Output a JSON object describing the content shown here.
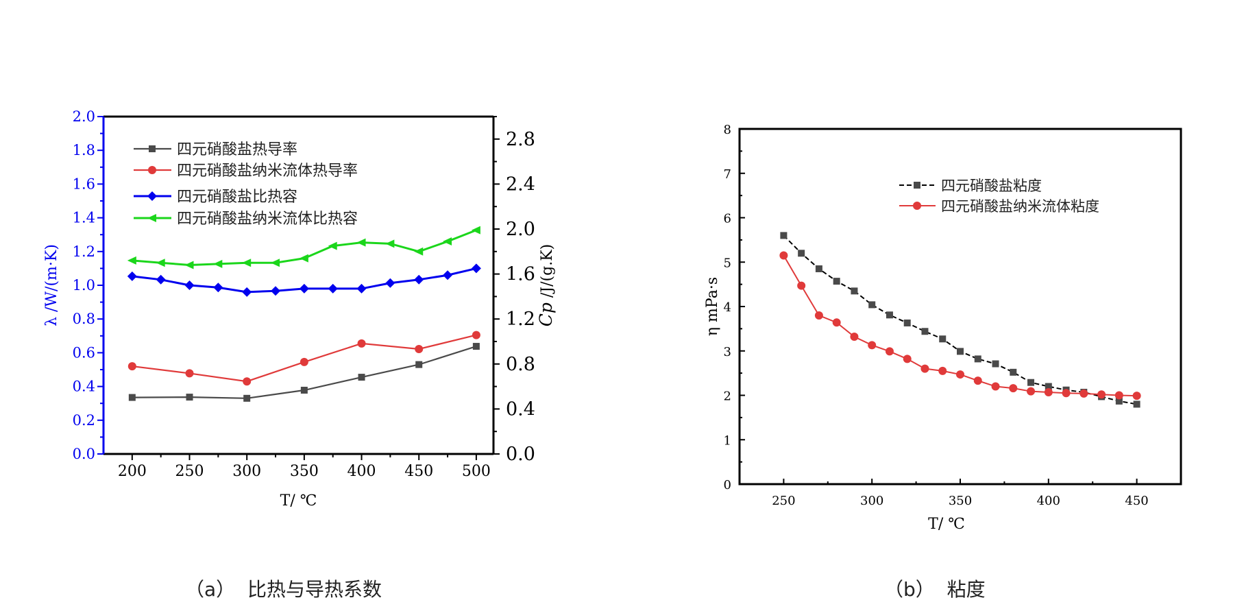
{
  "chart_data": [
    {
      "id": "a",
      "type": "line",
      "caption": "（a）  比热与导热系数",
      "xlabel": "T/ ℃",
      "ylabel_left": "λ /W/(m·K)",
      "ylabel_right_italic": "Cp",
      "ylabel_right_rest": " /J/(g.K)",
      "xlim": [
        175,
        515
      ],
      "ylim_left": [
        0,
        2.0
      ],
      "ylim_right": [
        0,
        3.0
      ],
      "x_ticks": [
        200,
        250,
        300,
        350,
        400,
        450,
        500
      ],
      "y_left_ticks": [
        "0.0",
        "0.2",
        "0.4",
        "0.6",
        "0.8",
        "1.0",
        "1.2",
        "1.4",
        "1.6",
        "1.8",
        "2.0"
      ],
      "y_right_ticks": [
        "0.0",
        "0.4",
        "0.8",
        "1.2",
        "1.6",
        "2.0",
        "2.4",
        "2.8"
      ],
      "legend_position": "top-left",
      "left_axis_color": "#0000ee",
      "series": [
        {
          "name": "四元硝酸盐热导率",
          "axis": "left",
          "color": "#4a4a4a",
          "marker": "square",
          "x": [
            200,
            250,
            300,
            350,
            400,
            450,
            500
          ],
          "values": [
            0.335,
            0.337,
            0.33,
            0.378,
            0.455,
            0.53,
            0.638
          ]
        },
        {
          "name": "四元硝酸盐纳米流体热导率",
          "axis": "left",
          "color": "#e03a3a",
          "marker": "circle",
          "x": [
            200,
            250,
            300,
            350,
            400,
            450,
            500
          ],
          "values": [
            0.52,
            0.478,
            0.43,
            0.545,
            0.655,
            0.622,
            0.705
          ]
        },
        {
          "name": "四元硝酸盐比热容",
          "axis": "right",
          "color": "#0000ee",
          "marker": "diamond",
          "x": [
            200,
            225,
            250,
            275,
            300,
            325,
            350,
            375,
            400,
            425,
            450,
            475,
            500
          ],
          "values": [
            1.58,
            1.55,
            1.5,
            1.48,
            1.44,
            1.45,
            1.47,
            1.47,
            1.47,
            1.52,
            1.55,
            1.59,
            1.65
          ]
        },
        {
          "name": "四元硝酸盐纳米流体比热容",
          "axis": "right",
          "color": "#1bd61b",
          "marker": "triangle-left",
          "x": [
            200,
            225,
            250,
            275,
            300,
            325,
            350,
            375,
            400,
            425,
            450,
            475,
            500
          ],
          "values": [
            1.72,
            1.7,
            1.68,
            1.69,
            1.7,
            1.7,
            1.74,
            1.85,
            1.88,
            1.87,
            1.8,
            1.89,
            1.99
          ]
        }
      ]
    },
    {
      "id": "b",
      "type": "line",
      "caption": "（b）  粘度",
      "xlabel": "T/ ℃",
      "ylabel": "η mPa·s",
      "xlim": [
        225,
        475
      ],
      "ylim": [
        0,
        8
      ],
      "x_ticks": [
        250,
        300,
        350,
        400,
        450
      ],
      "y_ticks": [
        0,
        1,
        2,
        3,
        4,
        5,
        6,
        7,
        8
      ],
      "legend_position": "top-center",
      "series": [
        {
          "name": "四元硝酸盐粘度",
          "color": "#4a4a4a",
          "marker": "square",
          "dashed": true,
          "x": [
            250,
            260,
            270,
            280,
            290,
            300,
            310,
            320,
            330,
            340,
            350,
            360,
            370,
            380,
            390,
            400,
            410,
            420,
            430,
            440,
            450
          ],
          "values": [
            5.6,
            5.2,
            4.85,
            4.57,
            4.35,
            4.04,
            3.81,
            3.63,
            3.44,
            3.27,
            2.99,
            2.82,
            2.71,
            2.52,
            2.29,
            2.2,
            2.12,
            2.07,
            1.97,
            1.87,
            1.8
          ]
        },
        {
          "name": "四元硝酸盐纳米流体粘度",
          "color": "#e03a3a",
          "marker": "circle",
          "dashed": false,
          "x": [
            250,
            260,
            270,
            280,
            290,
            300,
            310,
            320,
            330,
            340,
            350,
            360,
            370,
            380,
            390,
            400,
            410,
            420,
            430,
            440,
            450
          ],
          "values": [
            5.15,
            4.47,
            3.8,
            3.64,
            3.32,
            3.13,
            2.99,
            2.82,
            2.6,
            2.55,
            2.47,
            2.33,
            2.2,
            2.16,
            2.09,
            2.07,
            2.05,
            2.04,
            2.02,
            2.0,
            1.99
          ]
        }
      ]
    }
  ]
}
